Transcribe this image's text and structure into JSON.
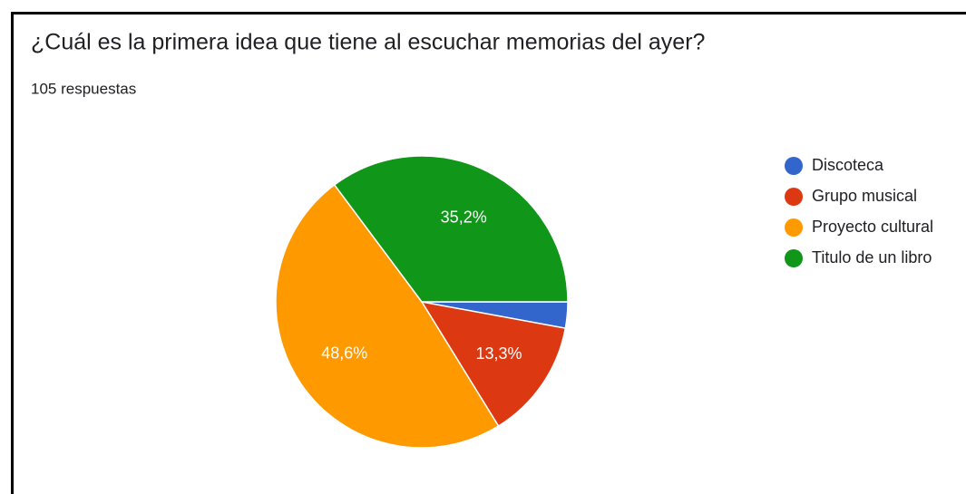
{
  "chart_data": {
    "type": "pie",
    "title": "¿Cuál es la primera idea que tiene al escuchar memorias del ayer?",
    "subtitle": "105 respuestas",
    "categories": [
      "Discoteca",
      "Grupo musical",
      "Proyecto cultural",
      "Titulo de un libro"
    ],
    "values": [
      2.9,
      13.3,
      48.6,
      35.2
    ],
    "value_labels": [
      null,
      "13,3%",
      "48,6%",
      "35,2%"
    ],
    "colors": [
      "#3366cc",
      "#dc3912",
      "#ff9900",
      "#109618"
    ],
    "legend": "right"
  }
}
